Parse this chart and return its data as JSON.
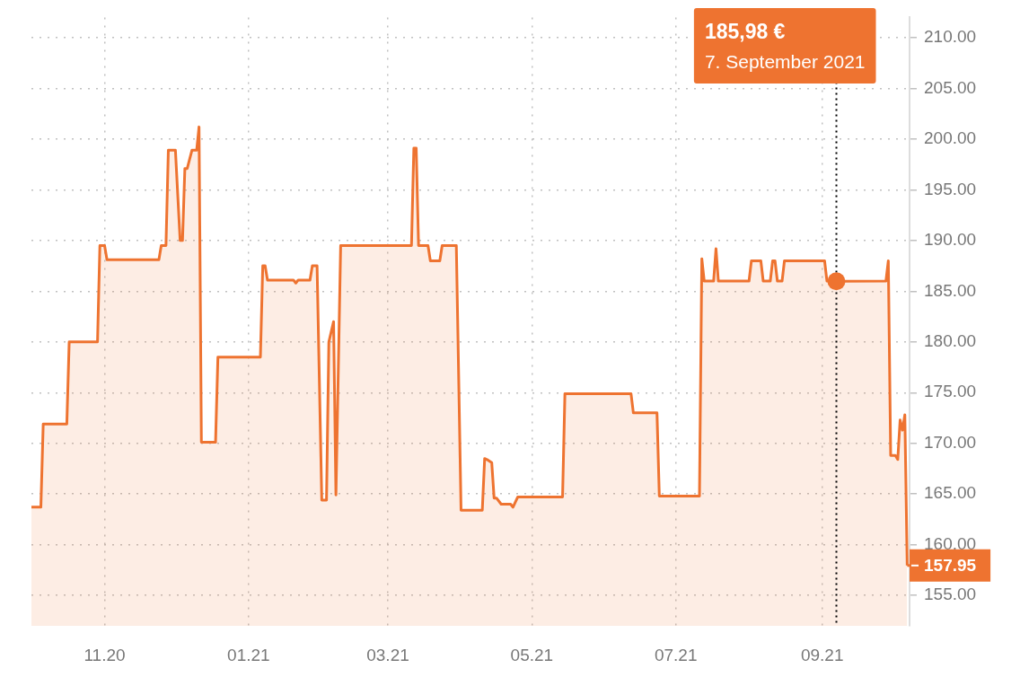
{
  "chart_data": {
    "type": "area",
    "grid": true,
    "legend": false,
    "marker": "none",
    "line_style": "solid",
    "x": [
      "2020-10-01",
      "2020-10-05",
      "2020-10-06",
      "2020-10-16",
      "2020-10-17",
      "2020-10-29",
      "2020-10-30",
      "2020-11-01",
      "2020-11-02",
      "2020-11-24",
      "2020-11-25",
      "2020-11-27",
      "2020-11-28",
      "2020-12-01",
      "2020-12-03",
      "2020-12-04",
      "2020-12-05",
      "2020-12-06",
      "2020-12-08",
      "2020-12-10",
      "2020-12-11",
      "2020-12-12",
      "2020-12-18",
      "2020-12-19",
      "2021-01-06",
      "2021-01-07",
      "2021-01-08",
      "2021-01-09",
      "2021-01-20",
      "2021-01-21",
      "2021-01-22",
      "2021-01-27",
      "2021-01-28",
      "2021-01-30",
      "2021-02-01",
      "2021-02-03",
      "2021-02-04",
      "2021-02-06",
      "2021-02-07",
      "2021-02-09",
      "2021-03-11",
      "2021-03-12",
      "2021-03-13",
      "2021-03-14",
      "2021-03-18",
      "2021-03-19",
      "2021-03-23",
      "2021-03-24",
      "2021-03-30",
      "2021-04-01",
      "2021-04-10",
      "2021-04-11",
      "2021-04-12",
      "2021-04-14",
      "2021-04-15",
      "2021-04-16",
      "2021-04-18",
      "2021-04-22",
      "2021-04-23",
      "2021-04-25",
      "2021-05-14",
      "2021-05-15",
      "2021-06-12",
      "2021-06-13",
      "2021-06-23",
      "2021-06-24",
      "2021-07-11",
      "2021-07-12",
      "2021-07-13",
      "2021-07-17",
      "2021-07-18",
      "2021-07-19",
      "2021-08-01",
      "2021-08-02",
      "2021-08-06",
      "2021-08-07",
      "2021-08-10",
      "2021-08-11",
      "2021-08-12",
      "2021-08-13",
      "2021-08-15",
      "2021-08-16",
      "2021-09-02",
      "2021-09-03",
      "2021-09-07",
      "2021-09-28",
      "2021-09-29",
      "2021-09-30",
      "2021-10-02",
      "2021-10-03",
      "2021-10-04",
      "2021-10-05",
      "2021-10-06",
      "2021-10-07"
    ],
    "series": [
      {
        "color": "#ee7330",
        "values": [
          163.7,
          163.7,
          171.9,
          171.9,
          180.0,
          180.0,
          189.5,
          189.5,
          188.1,
          188.1,
          189.5,
          189.5,
          198.9,
          198.9,
          190.0,
          190.0,
          197.1,
          197.1,
          198.9,
          198.9,
          201.2,
          170.1,
          170.1,
          178.5,
          178.5,
          187.5,
          187.5,
          186.1,
          186.1,
          185.8,
          186.1,
          186.1,
          187.5,
          187.5,
          164.4,
          164.4,
          180.0,
          182.0,
          164.9,
          189.5,
          189.5,
          199.1,
          199.1,
          189.5,
          189.5,
          188.0,
          188.0,
          189.5,
          189.5,
          163.4,
          163.4,
          168.5,
          168.4,
          168.1,
          164.6,
          164.6,
          164.0,
          164.0,
          163.7,
          164.7,
          164.7,
          174.9,
          174.9,
          173.0,
          173.0,
          164.8,
          164.8,
          188.2,
          186.0,
          186.0,
          189.2,
          186.0,
          186.0,
          188.0,
          188.0,
          186.0,
          186.0,
          188.0,
          188.0,
          186.0,
          186.0,
          188.0,
          188.0,
          186.0,
          185.98,
          186.0,
          188.0,
          168.8,
          168.8,
          168.4,
          172.3,
          171.3,
          172.8,
          157.95
        ]
      }
    ],
    "xlim": [
      "2020-10-01",
      "2021-10-08"
    ],
    "xticks": [
      {
        "value": "2020-11-01",
        "label": "11.20"
      },
      {
        "value": "2021-01-01",
        "label": "01.21"
      },
      {
        "value": "2021-03-01",
        "label": "03.21"
      },
      {
        "value": "2021-05-01",
        "label": "05.21"
      },
      {
        "value": "2021-07-01",
        "label": "07.21"
      },
      {
        "value": "2021-09-01",
        "label": "09.21"
      }
    ],
    "ylim": [
      152,
      212
    ],
    "yticks": [
      {
        "value": 155,
        "label": "155.00"
      },
      {
        "value": 160,
        "label": "160.00"
      },
      {
        "value": 165,
        "label": "165.00"
      },
      {
        "value": 170,
        "label": "170.00"
      },
      {
        "value": 175,
        "label": "175.00"
      },
      {
        "value": 180,
        "label": "180.00"
      },
      {
        "value": 185,
        "label": "185.00"
      },
      {
        "value": 190,
        "label": "190.00"
      },
      {
        "value": 195,
        "label": "195.00"
      },
      {
        "value": 200,
        "label": "200.00"
      },
      {
        "value": 205,
        "label": "205.00"
      },
      {
        "value": 210,
        "label": "210.00"
      }
    ],
    "ref_lines": [
      {
        "axis": "x",
        "value": "2021-09-07",
        "color": "#000000",
        "line_style": "dotted"
      }
    ],
    "annotations": [
      "185,98 €\n7. September 2021",
      {
        "text": "157.95",
        "x": "2021-10-07",
        "y": 157.95
      }
    ]
  }
}
